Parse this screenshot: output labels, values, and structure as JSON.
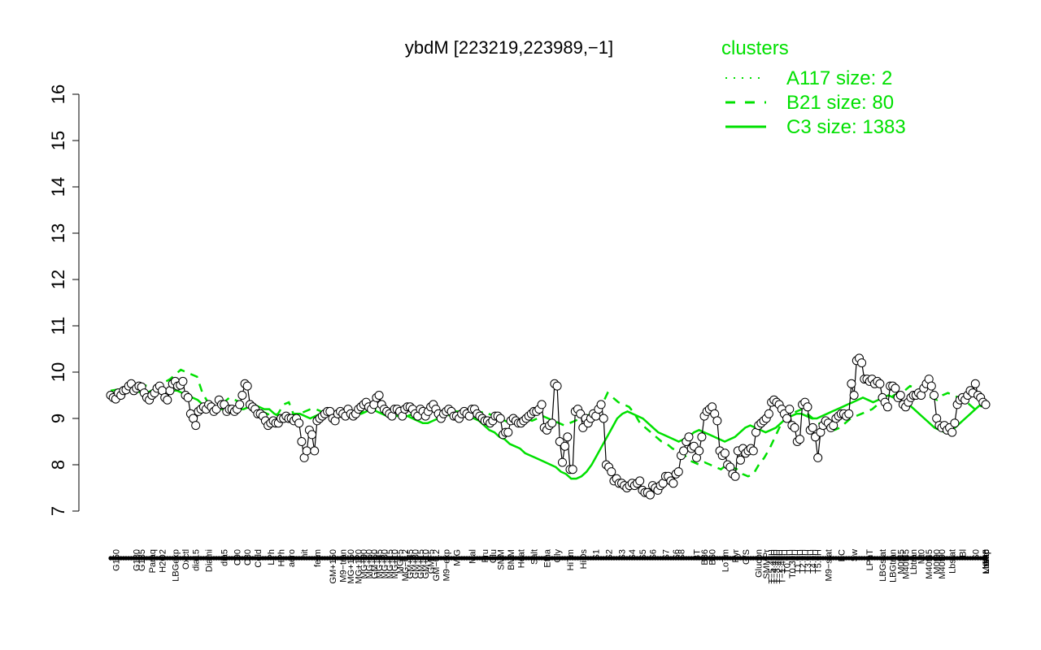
{
  "chart_data": {
    "type": "line",
    "title": "ybdM [223219,223989,−1]",
    "xlabel": "",
    "ylabel": "",
    "ylim": [
      7,
      16
    ],
    "yticks": [
      7,
      8,
      9,
      10,
      11,
      12,
      13,
      14,
      15,
      16
    ],
    "grid": false,
    "legend": {
      "title": "clusters",
      "placement": "top-right",
      "color": "#00e000",
      "entries": [
        {
          "label": "A117 size: 2",
          "style": "dotted"
        },
        {
          "label": "B21 size: 80",
          "style": "dashed"
        },
        {
          "label": "C3 size: 1383",
          "style": "solid"
        }
      ]
    },
    "x_tick_labels": [
      {
        "label": "G150",
        "i": 2
      },
      {
        "label": "G180",
        "i": 10
      },
      {
        "label": "G135",
        "i": 12
      },
      {
        "label": "Paraq",
        "i": 16
      },
      {
        "label": "H2O2",
        "i": 20
      },
      {
        "label": "LBGexp",
        "i": 25
      },
      {
        "label": "Oxctl",
        "i": 29
      },
      {
        "label": "dia15",
        "i": 33
      },
      {
        "label": "Diami",
        "i": 38
      },
      {
        "label": "dia5",
        "i": 44
      },
      {
        "label": "C90",
        "i": 49
      },
      {
        "label": "C30",
        "i": 53
      },
      {
        "label": "Cold",
        "i": 57
      },
      {
        "label": "LPh",
        "i": 62
      },
      {
        "label": "HPh",
        "i": 66
      },
      {
        "label": "aero",
        "i": 70
      },
      {
        "label": "nit",
        "i": 75
      },
      {
        "label": "ferm",
        "i": 80
      },
      {
        "label": "GM+150",
        "i": 86
      },
      {
        "label": "M9−tran",
        "i": 90
      },
      {
        "label": "MG+150",
        "i": 93
      },
      {
        "label": "MG+120",
        "i": 96
      },
      {
        "label": "MG+90",
        "i": 98
      },
      {
        "label": "MG+60",
        "i": 100
      },
      {
        "label": "GM+60",
        "i": 102
      },
      {
        "label": "MG+45",
        "i": 104
      },
      {
        "label": "MG+30",
        "i": 106
      },
      {
        "label": "MG+15",
        "i": 108
      },
      {
        "label": "MG+10",
        "i": 110
      },
      {
        "label": "MG+5",
        "i": 112
      },
      {
        "label": "MG−0.2",
        "i": 114
      },
      {
        "label": "GM+45",
        "i": 116
      },
      {
        "label": "GM+30",
        "i": 118
      },
      {
        "label": "GM+15",
        "i": 120
      },
      {
        "label": "GM+10",
        "i": 122
      },
      {
        "label": "GM+5",
        "i": 124
      },
      {
        "label": "GM−0.2",
        "i": 126
      },
      {
        "label": "M9−exp",
        "i": 130
      },
      {
        "label": "M/G",
        "i": 134
      },
      {
        "label": "Mal",
        "i": 140
      },
      {
        "label": "Fru",
        "i": 145
      },
      {
        "label": "Glu",
        "i": 148
      },
      {
        "label": "SMM",
        "i": 151
      },
      {
        "label": "BMM",
        "i": 155
      },
      {
        "label": "Heat",
        "i": 159
      },
      {
        "label": "Salt",
        "i": 164
      },
      {
        "label": "Etha",
        "i": 169
      },
      {
        "label": "Gly",
        "i": 173
      },
      {
        "label": "HiTm",
        "i": 178
      },
      {
        "label": "HiOs",
        "i": 183
      },
      {
        "label": "S1",
        "i": 188
      },
      {
        "label": "S2",
        "i": 193
      },
      {
        "label": "S3",
        "i": 198
      },
      {
        "label": "S4",
        "i": 202
      },
      {
        "label": "S5",
        "i": 206
      },
      {
        "label": "S6",
        "i": 210
      },
      {
        "label": "S7",
        "i": 215
      },
      {
        "label": "S6",
        "i": 219
      },
      {
        "label": "S8",
        "i": 221
      },
      {
        "label": "BT",
        "i": 227
      },
      {
        "label": "B36",
        "i": 230
      },
      {
        "label": "B60",
        "i": 233
      },
      {
        "label": "LoTm",
        "i": 238
      },
      {
        "label": "Pyr",
        "i": 242
      },
      {
        "label": "G/S",
        "i": 246
      },
      {
        "label": "Glucon",
        "i": 251
      },
      {
        "label": "SMMPr",
        "i": 254
      },
      {
        "label": "T−5.40H",
        "i": 256
      },
      {
        "label": "T−4.40H",
        "i": 257
      },
      {
        "label": "T−3.40H",
        "i": 258
      },
      {
        "label": "T−2.40H",
        "i": 259
      },
      {
        "label": "T−1.40H",
        "i": 260
      },
      {
        "label": "T0.0H",
        "i": 262
      },
      {
        "label": "T0.30H",
        "i": 264
      },
      {
        "label": "T1.0H",
        "i": 266
      },
      {
        "label": "T2.0H",
        "i": 268
      },
      {
        "label": "T3.0H",
        "i": 270
      },
      {
        "label": "T4.0H",
        "i": 272
      },
      {
        "label": "T5.0H",
        "i": 274
      },
      {
        "label": "M9−stat",
        "i": 278
      },
      {
        "label": "BC",
        "i": 283
      },
      {
        "label": "Sw",
        "i": 288
      },
      {
        "label": "LPhT",
        "i": 294
      },
      {
        "label": "LBGstat",
        "i": 299
      },
      {
        "label": "LBGtran",
        "i": 303
      },
      {
        "label": "M0t45",
        "i": 306
      },
      {
        "label": "M40t45",
        "i": 308
      },
      {
        "label": "Lbtran",
        "i": 311
      },
      {
        "label": "Mt0",
        "i": 314
      },
      {
        "label": "M40t45",
        "i": 317
      },
      {
        "label": "M0t90",
        "i": 320
      },
      {
        "label": "M40t90",
        "i": 322
      },
      {
        "label": "Lbstat",
        "i": 326
      },
      {
        "label": "Bl",
        "i": 330
      },
      {
        "label": "S0",
        "i": 335
      },
      {
        "label": "M0t45",
        "i": 339
      },
      {
        "label": "dia0",
        "i": 341
      },
      {
        "label": "Mt0",
        "i": 343
      },
      {
        "label": "Lbexp",
        "i": 345
      },
      {
        "label": "Mt0",
        "i": 347
      },
      {
        "label": "Lbexp",
        "i": 348
      }
    ],
    "series": [
      {
        "style": "points-line",
        "color": "#000000",
        "values": [
          9.5,
          9.45,
          9.42,
          9.55,
          9.5,
          9.6,
          9.62,
          9.7,
          9.75,
          9.6,
          9.65,
          9.7,
          9.68,
          9.55,
          9.45,
          9.4,
          9.5,
          9.55,
          9.65,
          9.7,
          9.6,
          9.45,
          9.4,
          9.6,
          9.75,
          9.8,
          9.7,
          9.72,
          9.8,
          9.5,
          9.45,
          9.1,
          9.0,
          8.85,
          9.15,
          9.2,
          9.25,
          9.2,
          9.3,
          9.25,
          9.15,
          9.2,
          9.4,
          9.3,
          9.3,
          9.15,
          9.2,
          9.2,
          9.15,
          9.2,
          9.3,
          9.5,
          9.75,
          9.7,
          9.3,
          9.25,
          9.2,
          9.1,
          9.1,
          9.05,
          8.95,
          8.85,
          8.9,
          8.95,
          8.9,
          8.9,
          9.0,
          9.0,
          9.05,
          9.0,
          9.0,
          8.95,
          9.0,
          8.9,
          8.5,
          8.15,
          8.3,
          8.75,
          8.65,
          8.3,
          8.95,
          9.0,
          9.05,
          9.1,
          9.15,
          9.15,
          9.0,
          8.95,
          9.1,
          9.15,
          9.1,
          9.05,
          9.2,
          9.1,
          9.05,
          9.1,
          9.2,
          9.25,
          9.3,
          9.35,
          9.25,
          9.2,
          9.3,
          9.45,
          9.5,
          9.3,
          9.2,
          9.15,
          9.1,
          9.05,
          9.2,
          9.2,
          9.15,
          9.05,
          9.2,
          9.25,
          9.25,
          9.2,
          9.1,
          9.05,
          9.2,
          9.15,
          9.05,
          9.15,
          9.25,
          9.3,
          9.2,
          9.1,
          9.0,
          9.1,
          9.15,
          9.2,
          9.15,
          9.05,
          9.05,
          9.0,
          9.1,
          9.15,
          9.1,
          9.05,
          9.2,
          9.2,
          9.1,
          9.05,
          9.0,
          8.95,
          8.95,
          8.9,
          8.95,
          9.05,
          9.05,
          9.0,
          8.65,
          8.7,
          8.7,
          8.95,
          9.0,
          8.95,
          8.9,
          8.9,
          8.95,
          9.0,
          9.05,
          9.1,
          9.15,
          9.15,
          9.2,
          9.3,
          8.8,
          8.75,
          8.85,
          8.9,
          9.75,
          9.7,
          8.5,
          8.05,
          8.4,
          8.6,
          7.9,
          7.9,
          9.15,
          9.2,
          9.1,
          8.8,
          9.0,
          8.9,
          9.0,
          9.1,
          9.05,
          9.2,
          9.3,
          9.0,
          8.0,
          7.95,
          7.85,
          7.65,
          7.7,
          7.6,
          7.6,
          7.55,
          7.5,
          7.55,
          7.6,
          7.55,
          7.6,
          7.65,
          7.45,
          7.4,
          7.4,
          7.35,
          7.55,
          7.5,
          7.45,
          7.55,
          7.6,
          7.75,
          7.75,
          7.65,
          7.6,
          7.8,
          7.85,
          8.2,
          8.3,
          8.5,
          8.6,
          8.35,
          8.4,
          8.15,
          8.3,
          8.6,
          9.05,
          9.15,
          9.2,
          9.25,
          9.1,
          8.95,
          8.3,
          8.2,
          8.25,
          8.0,
          7.95,
          7.8,
          7.75,
          8.3,
          8.1,
          8.35,
          8.25,
          8.3,
          8.35,
          8.3,
          8.7,
          8.85,
          8.9,
          8.95,
          9.0,
          9.1,
          9.35,
          9.4,
          9.35,
          9.3,
          9.2,
          9.1,
          9.0,
          9.2,
          8.85,
          8.8,
          8.5,
          8.55,
          9.3,
          9.35,
          9.25,
          8.75,
          8.8,
          8.6,
          8.15,
          8.7,
          8.85,
          8.95,
          8.9,
          8.8,
          8.85,
          9.0,
          9.05,
          9.1,
          9.1,
          9.05,
          9.1,
          9.75,
          9.5,
          10.25,
          10.3,
          10.2,
          9.85,
          9.85,
          9.8,
          9.85,
          9.75,
          9.8,
          9.75,
          9.45,
          9.35,
          9.25,
          9.7,
          9.7,
          9.65,
          9.45,
          9.5,
          9.3,
          9.25,
          9.35,
          9.45,
          9.5,
          9.5,
          9.55,
          9.5,
          9.65,
          9.75,
          9.85,
          9.7,
          9.5,
          9.0,
          8.85,
          8.8,
          8.85,
          8.75,
          8.8,
          8.7,
          8.9,
          9.3,
          9.4,
          9.45,
          9.4,
          9.5,
          9.6,
          9.55,
          9.75,
          9.5,
          9.45,
          9.35,
          9.3
        ]
      },
      {
        "style": "dashed",
        "color": "#00e000",
        "values": [
          9.6,
          9.62,
          9.63,
          9.65,
          9.7,
          9.75,
          9.72,
          9.7,
          9.68,
          9.7,
          9.78,
          9.85,
          9.95,
          10.05,
          10.0,
          9.95,
          9.9,
          9.55,
          9.35,
          9.15,
          9.3,
          9.35,
          9.45,
          9.4,
          9.35,
          9.3,
          9.25,
          9.2,
          9.15,
          9.1,
          9.05,
          9.1,
          9.3,
          9.35,
          9.05,
          9.1,
          9.15,
          9.2,
          9.2,
          9.15,
          9.1,
          9.15,
          9.1,
          9.1,
          9.2,
          9.15,
          9.1,
          9.15,
          9.25,
          9.2,
          9.15,
          9.1,
          9.2,
          9.15,
          9.1,
          9.05,
          9.1,
          9.15,
          9.1,
          9.05,
          9.1,
          9.15,
          9.1,
          9.05,
          9.1,
          9.15,
          9.1,
          9.05,
          9.1,
          9.15,
          9.1,
          9.05,
          9.0,
          8.95,
          8.9,
          8.9,
          8.95,
          9.0,
          8.95,
          9.0,
          9.05,
          9.0,
          8.95,
          8.9,
          8.85,
          8.9,
          8.95,
          9.0,
          9.05,
          9.1,
          9.15,
          9.3,
          9.55,
          9.45,
          9.35,
          9.3,
          9.25,
          9.1,
          8.9,
          8.8,
          8.7,
          8.6,
          8.5,
          8.45,
          8.35,
          8.3,
          8.25,
          8.1,
          8.05,
          8.0,
          8.05,
          8.0,
          7.95,
          7.9,
          8.0,
          7.95,
          7.9,
          7.8,
          7.75,
          7.8,
          8.0,
          8.15,
          8.35,
          8.6,
          8.85,
          9.0,
          9.1,
          9.15,
          9.2,
          9.1,
          9.0,
          8.9,
          8.85,
          8.8,
          8.75,
          8.8,
          8.9,
          9.0,
          9.05,
          9.1,
          9.15,
          9.2,
          9.3,
          9.45,
          9.4,
          9.5,
          9.55,
          9.6,
          9.7,
          9.65,
          9.6,
          9.5,
          9.45,
          9.4,
          9.5,
          9.55,
          9.5,
          9.45,
          9.4,
          9.3,
          9.2,
          9.25,
          9.35
        ]
      },
      {
        "style": "solid",
        "color": "#00e000",
        "values": [
          9.55,
          9.56,
          9.56,
          9.55,
          9.6,
          9.6,
          9.55,
          9.55,
          9.6,
          9.6,
          9.55,
          9.58,
          9.6,
          9.6,
          9.55,
          9.5,
          9.45,
          9.4,
          9.3,
          9.35,
          9.25,
          9.2,
          9.2,
          9.2,
          9.25,
          9.2,
          9.2,
          9.25,
          9.3,
          9.25,
          9.2,
          9.2,
          9.1,
          9.05,
          9.0,
          9.05,
          9.1,
          9.1,
          9.05,
          9.0,
          9.05,
          9.1,
          9.15,
          9.1,
          9.1,
          9.05,
          9.05,
          9.1,
          9.1,
          9.1,
          9.15,
          9.2,
          9.15,
          9.1,
          9.05,
          9.1,
          9.05,
          9.05,
          9.05,
          9.0,
          8.95,
          8.9,
          8.9,
          8.95,
          9.0,
          9.05,
          9.1,
          9.15,
          9.15,
          9.1,
          9.05,
          9.0,
          8.95,
          8.85,
          8.75,
          8.7,
          8.6,
          8.55,
          8.45,
          8.4,
          8.35,
          8.25,
          8.2,
          8.15,
          8.1,
          8.05,
          8.0,
          7.95,
          7.85,
          7.8,
          7.7,
          7.7,
          7.75,
          7.85,
          8.0,
          8.2,
          8.4,
          8.6,
          8.8,
          9.0,
          9.1,
          9.15,
          9.1,
          9.05,
          9.0,
          8.9,
          8.8,
          8.7,
          8.65,
          8.6,
          8.55,
          8.5,
          8.55,
          8.6,
          8.7,
          8.75,
          8.7,
          8.65,
          8.6,
          8.55,
          8.5,
          8.55,
          8.6,
          8.7,
          8.8,
          8.85,
          8.8,
          8.75,
          8.7,
          8.75,
          8.8,
          8.9,
          9.0,
          9.05,
          9.1,
          9.1,
          9.05,
          9.0,
          9.0,
          9.05,
          9.1,
          9.15,
          9.2,
          9.25,
          9.3,
          9.35,
          9.4,
          9.45,
          9.4,
          9.35,
          9.4,
          9.45,
          9.5,
          9.45,
          9.4,
          9.35,
          9.3,
          9.2,
          9.1,
          9.0,
          8.9,
          8.8,
          8.75,
          8.7,
          8.75,
          8.8,
          8.9,
          9.0,
          9.1,
          9.2,
          9.3,
          9.35
        ]
      }
    ]
  }
}
